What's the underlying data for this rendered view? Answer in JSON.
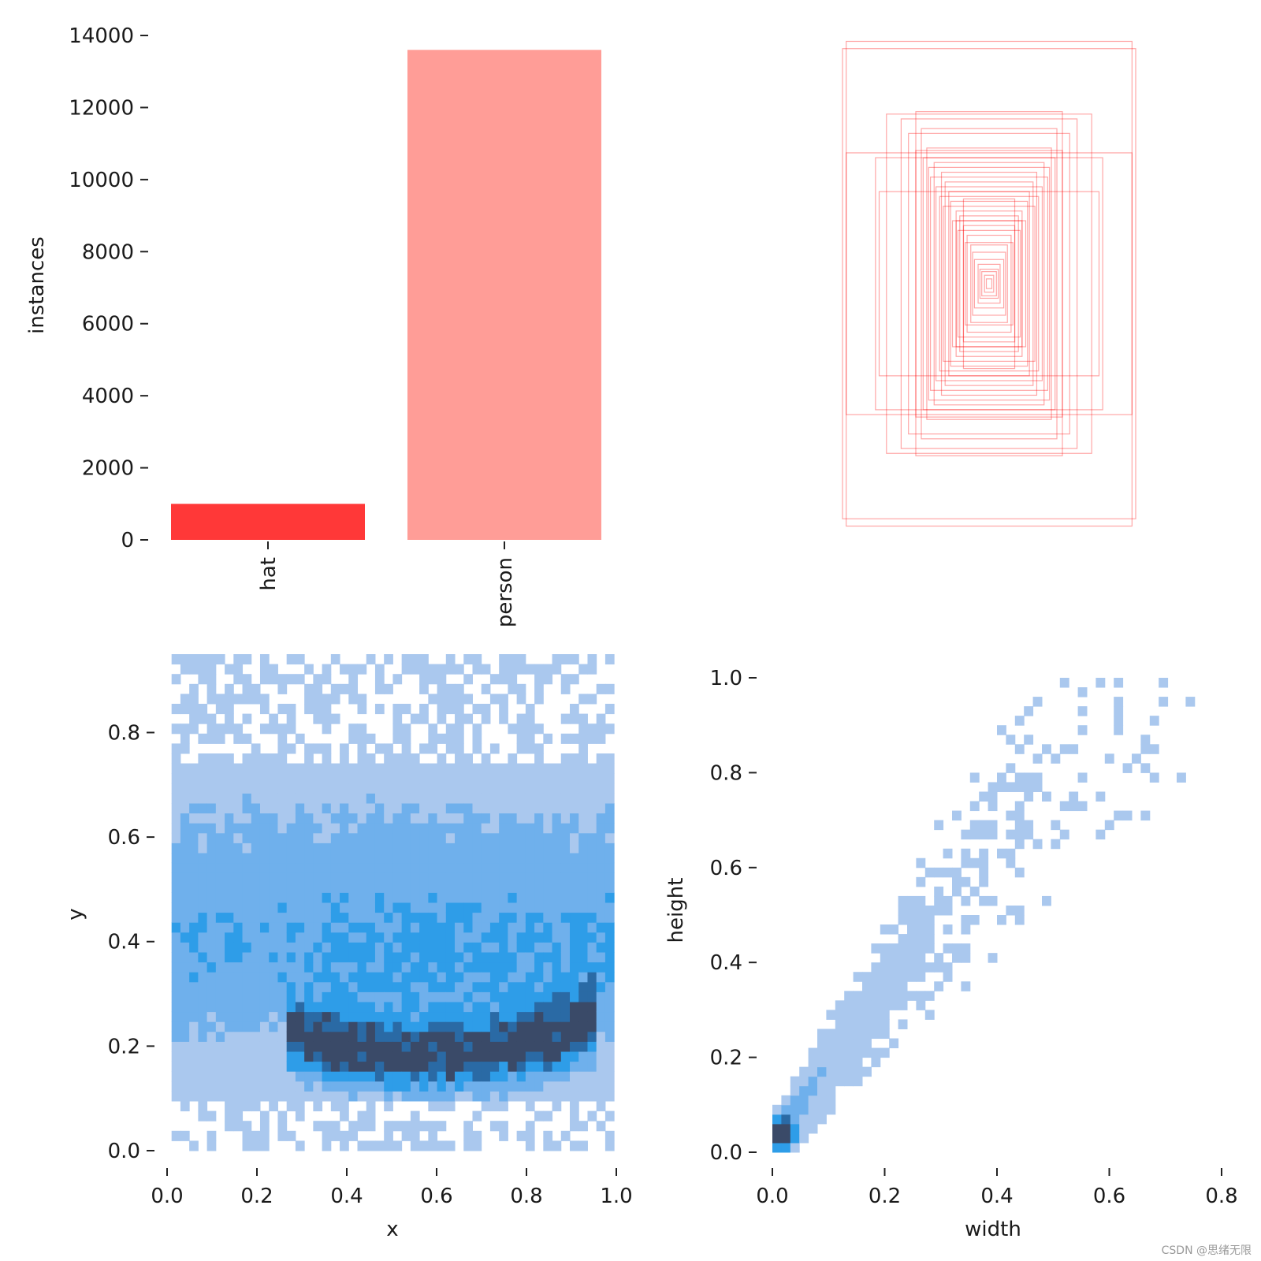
{
  "chart_data": [
    {
      "id": "instances_bar",
      "type": "bar",
      "categories": [
        "hat",
        "person"
      ],
      "values": [
        1000,
        13600
      ],
      "colors": [
        "#ff3838",
        "#ff9d97"
      ],
      "ylabel": "instances",
      "xlabel": "",
      "ylim": [
        0,
        14000
      ],
      "yticks": [
        0,
        2000,
        4000,
        6000,
        8000,
        10000,
        12000,
        14000
      ],
      "ytick_labels": [
        "0",
        "2000",
        "4000",
        "6000",
        "8000",
        "10000",
        "12000",
        "14000"
      ]
    },
    {
      "id": "box_overlay",
      "type": "box-overlay",
      "description_units": "normalized width/height of sampled boxes, centered",
      "color": "#ff0000",
      "boxes": [
        [
          0.78,
          1.0
        ],
        [
          0.8,
          0.97
        ],
        [
          0.78,
          0.54
        ],
        [
          0.62,
          0.52
        ],
        [
          0.6,
          0.38
        ],
        [
          0.56,
          0.7
        ],
        [
          0.4,
          0.71
        ],
        [
          0.48,
          0.68
        ],
        [
          0.37,
          0.64
        ],
        [
          0.44,
          0.62
        ],
        [
          0.34,
          0.56
        ],
        [
          0.4,
          0.55
        ],
        [
          0.33,
          0.48
        ],
        [
          0.36,
          0.52
        ],
        [
          0.3,
          0.5
        ],
        [
          0.32,
          0.44
        ],
        [
          0.26,
          0.46
        ],
        [
          0.29,
          0.4
        ],
        [
          0.24,
          0.42
        ],
        [
          0.27,
          0.36
        ],
        [
          0.22,
          0.38
        ],
        [
          0.25,
          0.32
        ],
        [
          0.21,
          0.34
        ],
        [
          0.18,
          0.3
        ],
        [
          0.2,
          0.26
        ],
        [
          0.16,
          0.28
        ],
        [
          0.17,
          0.22
        ],
        [
          0.14,
          0.24
        ],
        [
          0.12,
          0.2
        ],
        [
          0.13,
          0.17
        ],
        [
          0.1,
          0.16
        ],
        [
          0.09,
          0.13
        ],
        [
          0.08,
          0.1
        ],
        [
          0.06,
          0.08
        ],
        [
          0.05,
          0.06
        ],
        [
          0.04,
          0.05
        ],
        [
          0.025,
          0.035
        ],
        [
          0.015,
          0.02
        ],
        [
          0.14,
          0.35
        ],
        [
          0.18,
          0.26
        ]
      ]
    },
    {
      "id": "xy_hist",
      "type": "heatmap",
      "xlabel": "x",
      "ylabel": "y",
      "xlim": [
        0,
        1
      ],
      "ylim": [
        0,
        0.95
      ],
      "xticks": [
        "0.0",
        "0.2",
        "0.4",
        "0.6",
        "0.8",
        "1.0"
      ],
      "yticks": [
        "0.0",
        "0.2",
        "0.4",
        "0.6",
        "0.8"
      ],
      "xtick_values": [
        0,
        0.2,
        0.4,
        0.6,
        0.8,
        1.0
      ],
      "ytick_values": [
        0,
        0.2,
        0.4,
        0.6,
        0.8
      ],
      "bins": 50,
      "data_xrange": [
        0.01,
        0.995
      ],
      "data_yrange": [
        0.0,
        0.95
      ],
      "dense_band": {
        "y_center": 0.18,
        "y_spread": 0.06,
        "x_range": [
          0.26,
          0.95
        ]
      },
      "colormap": [
        "#aac8ee",
        "#6fb0ec",
        "#2e9de8",
        "#2a6aa5",
        "#3a4a68"
      ]
    },
    {
      "id": "wh_hist",
      "type": "heatmap",
      "xlabel": "width",
      "ylabel": "height",
      "xlim": [
        0,
        0.8
      ],
      "ylim": [
        0,
        1.0
      ],
      "xticks": [
        "0.0",
        "0.2",
        "0.4",
        "0.6",
        "0.8"
      ],
      "yticks": [
        "0.0",
        "0.2",
        "0.4",
        "0.6",
        "0.8",
        "1.0"
      ],
      "xtick_values": [
        0,
        0.2,
        0.4,
        0.6,
        0.8
      ],
      "ytick_values": [
        0,
        0.2,
        0.4,
        0.6,
        0.8,
        1.0
      ],
      "bins": 50,
      "peak": [
        0.02,
        0.04
      ],
      "relation": "height ≈ 1.6 × width",
      "colormap": [
        "#aac8ee",
        "#6fb0ec",
        "#2e9de8",
        "#2a6aa5",
        "#3a4a68"
      ]
    }
  ],
  "watermark": "CSDN @思绪无限"
}
